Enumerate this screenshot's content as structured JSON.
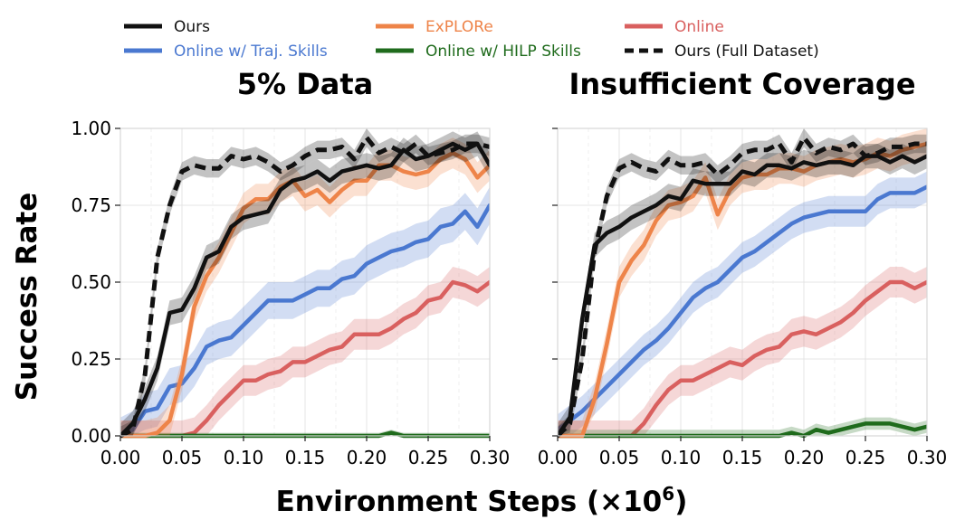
{
  "chart_data": {
    "type": "line",
    "shared_x": [
      0.0,
      0.01,
      0.02,
      0.03,
      0.04,
      0.05,
      0.06,
      0.07,
      0.08,
      0.09,
      0.1,
      0.11,
      0.12,
      0.13,
      0.14,
      0.15,
      0.16,
      0.17,
      0.18,
      0.19,
      0.2,
      0.21,
      0.22,
      0.23,
      0.24,
      0.25,
      0.26,
      0.27,
      0.28,
      0.29,
      0.3
    ],
    "xlabel": "Environment Steps (×10",
    "xlabel_exponent": "6",
    "xlabel_close": ")",
    "ylabel": "Success Rate",
    "xlim": [
      0,
      0.3
    ],
    "ylim": [
      0,
      1.0
    ],
    "x_ticks": [
      "0.00",
      "0.05",
      "0.10",
      "0.15",
      "0.20",
      "0.25",
      "0.30"
    ],
    "y_ticks": [
      "0.00",
      "0.25",
      "0.50",
      "0.75",
      "1.00"
    ],
    "legend": [
      {
        "key": "ours",
        "label": "Ours",
        "color": "#111111",
        "dashed": false
      },
      {
        "key": "explore",
        "label": "ExPLORe",
        "color": "#ee8449",
        "dashed": false
      },
      {
        "key": "online",
        "label": "Online",
        "color": "#d9605f",
        "dashed": false
      },
      {
        "key": "traj",
        "label": "Online w/ Traj. Skills",
        "color": "#4a78d0",
        "dashed": false
      },
      {
        "key": "hilp",
        "label": "Online w/ HILP Skills",
        "color": "#1f6b1c",
        "dashed": false
      },
      {
        "key": "full",
        "label": "Ours (Full Dataset)",
        "color": "#111111",
        "dashed": true
      }
    ],
    "panels": [
      {
        "title": "5% Data",
        "series": [
          {
            "key": "traj",
            "name": "Online w/ Traj. Skills",
            "band": 0.06,
            "values": [
              0,
              0.02,
              0.08,
              0.09,
              0.16,
              0.17,
              0.22,
              0.29,
              0.31,
              0.32,
              0.36,
              0.4,
              0.44,
              0.44,
              0.44,
              0.46,
              0.48,
              0.48,
              0.51,
              0.52,
              0.56,
              0.58,
              0.6,
              0.61,
              0.63,
              0.64,
              0.68,
              0.69,
              0.73,
              0.68,
              0.75
            ]
          },
          {
            "key": "online",
            "name": "Online",
            "band": 0.05,
            "values": [
              0,
              0,
              0,
              0,
              0,
              0,
              0.01,
              0.05,
              0.1,
              0.14,
              0.18,
              0.18,
              0.2,
              0.21,
              0.24,
              0.24,
              0.26,
              0.28,
              0.29,
              0.33,
              0.33,
              0.33,
              0.35,
              0.38,
              0.4,
              0.44,
              0.45,
              0.5,
              0.49,
              0.47,
              0.5
            ]
          },
          {
            "key": "hilp",
            "name": "Online w/ HILP Skills",
            "band": 0.01,
            "values": [
              0,
              0,
              0,
              0,
              0,
              0,
              0,
              0,
              0,
              0,
              0,
              0,
              0,
              0,
              0,
              0,
              0,
              0,
              0,
              0,
              0,
              0,
              0.01,
              0,
              0,
              0,
              0,
              0,
              0,
              0,
              0
            ]
          },
          {
            "key": "explore",
            "name": "ExPLORe",
            "band": 0.05,
            "values": [
              0,
              0,
              0,
              0.01,
              0.05,
              0.2,
              0.42,
              0.52,
              0.58,
              0.66,
              0.74,
              0.77,
              0.77,
              0.81,
              0.83,
              0.78,
              0.8,
              0.76,
              0.8,
              0.83,
              0.83,
              0.88,
              0.88,
              0.86,
              0.85,
              0.86,
              0.9,
              0.92,
              0.9,
              0.84,
              0.88
            ]
          },
          {
            "key": "ours",
            "name": "Ours",
            "band": 0.04,
            "values": [
              0,
              0.04,
              0.12,
              0.22,
              0.4,
              0.41,
              0.48,
              0.58,
              0.6,
              0.68,
              0.71,
              0.72,
              0.73,
              0.8,
              0.83,
              0.84,
              0.86,
              0.83,
              0.86,
              0.87,
              0.88,
              0.87,
              0.88,
              0.93,
              0.9,
              0.91,
              0.93,
              0.95,
              0.93,
              0.95,
              0.88
            ]
          },
          {
            "key": "full",
            "name": "Ours (Full Dataset)",
            "band": 0.03,
            "values": [
              0,
              0.02,
              0.2,
              0.58,
              0.75,
              0.86,
              0.88,
              0.87,
              0.87,
              0.91,
              0.9,
              0.91,
              0.89,
              0.86,
              0.88,
              0.91,
              0.93,
              0.93,
              0.94,
              0.9,
              0.97,
              0.92,
              0.94,
              0.92,
              0.95,
              0.91,
              0.92,
              0.93,
              0.95,
              0.95,
              0.94
            ]
          }
        ]
      },
      {
        "title": "Insufficient Coverage",
        "series": [
          {
            "key": "traj",
            "name": "Online w/ Traj. Skills",
            "band": 0.05,
            "values": [
              0.02,
              0.05,
              0.08,
              0.12,
              0.16,
              0.2,
              0.24,
              0.28,
              0.31,
              0.35,
              0.4,
              0.45,
              0.48,
              0.5,
              0.54,
              0.58,
              0.6,
              0.63,
              0.66,
              0.69,
              0.71,
              0.72,
              0.73,
              0.73,
              0.73,
              0.73,
              0.77,
              0.79,
              0.79,
              0.79,
              0.81
            ]
          },
          {
            "key": "online",
            "name": "Online",
            "band": 0.05,
            "values": [
              0,
              0,
              0,
              0,
              0,
              0,
              0,
              0.04,
              0.1,
              0.15,
              0.18,
              0.18,
              0.2,
              0.22,
              0.24,
              0.23,
              0.26,
              0.28,
              0.29,
              0.33,
              0.34,
              0.33,
              0.35,
              0.37,
              0.4,
              0.44,
              0.47,
              0.5,
              0.5,
              0.48,
              0.5
            ]
          },
          {
            "key": "hilp",
            "name": "Online w/ HILP Skills",
            "band": 0.02,
            "values": [
              0,
              0,
              0,
              0,
              0,
              0,
              0,
              0,
              0,
              0,
              0,
              0,
              0,
              0,
              0,
              0,
              0,
              0,
              0,
              0.01,
              0,
              0.02,
              0.01,
              0.02,
              0.03,
              0.04,
              0.04,
              0.04,
              0.03,
              0.02,
              0.03
            ]
          },
          {
            "key": "explore",
            "name": "ExPLORe",
            "band": 0.05,
            "values": [
              0,
              0,
              0,
              0.12,
              0.3,
              0.5,
              0.57,
              0.62,
              0.7,
              0.75,
              0.76,
              0.78,
              0.84,
              0.72,
              0.8,
              0.84,
              0.85,
              0.85,
              0.87,
              0.87,
              0.86,
              0.88,
              0.89,
              0.9,
              0.89,
              0.9,
              0.92,
              0.91,
              0.93,
              0.94,
              0.95
            ]
          },
          {
            "key": "ours",
            "name": "Ours",
            "band": 0.04,
            "values": [
              0,
              0.06,
              0.38,
              0.62,
              0.66,
              0.68,
              0.71,
              0.73,
              0.75,
              0.78,
              0.77,
              0.83,
              0.82,
              0.82,
              0.82,
              0.86,
              0.85,
              0.88,
              0.88,
              0.87,
              0.89,
              0.88,
              0.89,
              0.89,
              0.88,
              0.91,
              0.91,
              0.89,
              0.91,
              0.89,
              0.91
            ]
          },
          {
            "key": "full",
            "name": "Ours (Full Dataset)",
            "band": 0.03,
            "values": [
              0,
              0.04,
              0.25,
              0.6,
              0.78,
              0.87,
              0.89,
              0.87,
              0.86,
              0.9,
              0.88,
              0.88,
              0.89,
              0.85,
              0.88,
              0.92,
              0.93,
              0.93,
              0.95,
              0.89,
              0.97,
              0.92,
              0.94,
              0.93,
              0.95,
              0.91,
              0.92,
              0.94,
              0.94,
              0.95,
              0.95
            ]
          }
        ]
      }
    ]
  }
}
